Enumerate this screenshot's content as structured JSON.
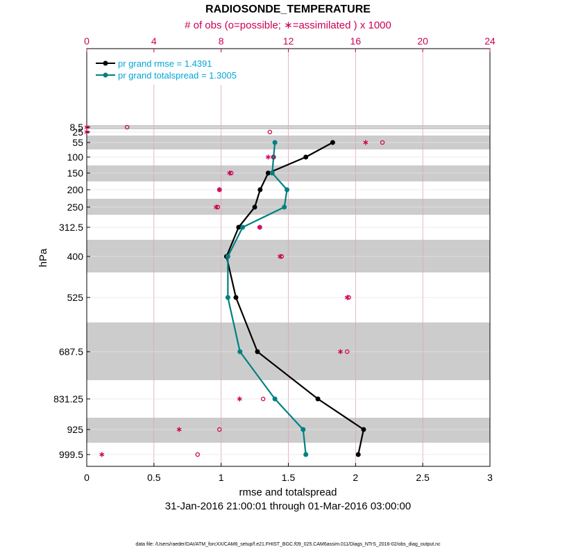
{
  "chart_data": {
    "type": "line",
    "title": "RADIOSONDE_TEMPERATURE",
    "top_axis_label": "# of obs (o=possible; ∗=assimilated ) x 1000",
    "xlabel": "rmse and totalspread",
    "ylabel": "hPa",
    "date_range": "31-Jan-2016 21:00:01 through 01-Mar-2016 03:00:00",
    "footnote": "data file: /Users/raeder/DAI/ATM_forcXX/CAM6_setup/f.e21.FHIST_BGC.f09_025.CAM6assim.011/Diags_NTrS_2016-02/obs_diag_output.nc",
    "xlim": [
      0,
      3
    ],
    "xticks": [
      "0",
      "0.5",
      "1",
      "1.5",
      "2",
      "2.5",
      "3"
    ],
    "top_xlim": [
      0,
      24
    ],
    "top_xticks": [
      "0",
      "4",
      "8",
      "12",
      "16",
      "20",
      "24"
    ],
    "levels": [
      "8.5",
      "25",
      "55",
      "100",
      "150",
      "200",
      "250",
      "312.5",
      "400",
      "525",
      "687.5",
      "831.25",
      "925",
      "999.5"
    ],
    "series": [
      {
        "name": "pr grand rmse = 1.4391",
        "color": "#000000",
        "levels": [
          "55",
          "100",
          "150",
          "200",
          "250",
          "312.5",
          "400",
          "525",
          "687.5",
          "831.25",
          "925",
          "999.5"
        ],
        "values": [
          1.83,
          1.63,
          1.35,
          1.29,
          1.25,
          1.13,
          1.04,
          1.11,
          1.27,
          1.72,
          2.06,
          2.02
        ]
      },
      {
        "name": "pr grand totalspread = 1.3005",
        "color": "#008080",
        "levels": [
          "55",
          "100",
          "150",
          "200",
          "250",
          "312.5",
          "400",
          "525",
          "687.5",
          "831.25",
          "925",
          "999.5"
        ],
        "values": [
          1.4,
          1.39,
          1.38,
          1.49,
          1.47,
          1.16,
          1.05,
          1.05,
          1.14,
          1.4,
          1.61,
          1.63
        ]
      }
    ],
    "obs_possible": {
      "levels": [
        "8.5",
        "25",
        "55",
        "100",
        "150",
        "200",
        "250",
        "312.5",
        "400",
        "525",
        "687.5",
        "831.25",
        "925",
        "999.5"
      ],
      "values": [
        2.4,
        10.9,
        17.6,
        11.1,
        8.6,
        7.9,
        7.8,
        10.3,
        11.6,
        15.6,
        15.5,
        10.5,
        7.9,
        6.6
      ]
    },
    "obs_assimilated": {
      "levels": [
        "8.5",
        "25",
        "55",
        "100",
        "150",
        "200",
        "250",
        "312.5",
        "400",
        "525",
        "687.5",
        "831.25",
        "925",
        "999.5"
      ],
      "values": [
        0.0,
        0.0,
        16.6,
        10.8,
        8.5,
        7.9,
        7.7,
        10.3,
        11.5,
        15.5,
        15.1,
        9.1,
        5.5,
        0.9
      ]
    },
    "shaded_bands": [
      [
        "8.5",
        "8.5"
      ],
      [
        "55",
        "55"
      ],
      [
        "150",
        "150"
      ],
      [
        "250",
        "250"
      ],
      [
        "400",
        "400"
      ],
      [
        "687.5",
        "687.5"
      ],
      [
        "925",
        "925"
      ]
    ]
  }
}
